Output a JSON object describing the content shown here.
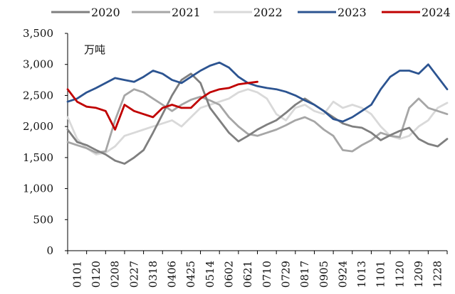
{
  "chart_data": {
    "type": "line",
    "unit": "万吨",
    "ylim": [
      0,
      3500
    ],
    "yticks": [
      "0",
      "500",
      "1,000",
      "1,500",
      "2,000",
      "2,500",
      "3,000",
      "3,500"
    ],
    "x_labels": [
      "0101",
      "0120",
      "0208",
      "0227",
      "0318",
      "0406",
      "0425",
      "0514",
      "0602",
      "0621",
      "0710",
      "0729",
      "0817",
      "0905",
      "0924",
      "1013",
      "1101",
      "1120",
      "1209",
      "1228"
    ],
    "legend_position": "top",
    "grid": false,
    "series": [
      {
        "name": "2020",
        "color": "#7f7f7f",
        "values": [
          1950,
          1750,
          1700,
          1620,
          1550,
          1450,
          1400,
          1500,
          1620,
          1900,
          2200,
          2500,
          2750,
          2850,
          2700,
          2300,
          2100,
          1900,
          1760,
          1850,
          1950,
          2030,
          2100,
          2220,
          2350,
          2450,
          2350,
          2250,
          2150,
          2050,
          2000,
          1980,
          1900,
          1780,
          1860,
          1930,
          1980,
          1800,
          1720,
          1680,
          1800
        ]
      },
      {
        "name": "2021",
        "color": "#a6a6a6",
        "values": [
          1750,
          1700,
          1650,
          1580,
          1600,
          2100,
          2500,
          2600,
          2550,
          2450,
          2350,
          2250,
          2350,
          2430,
          2480,
          2420,
          2350,
          2150,
          2000,
          1880,
          1850,
          1900,
          1950,
          2020,
          2100,
          2150,
          2080,
          1950,
          1850,
          1620,
          1600,
          1700,
          1780,
          1900,
          1850,
          1830,
          2300,
          2450,
          2300,
          2250,
          2200
        ]
      },
      {
        "name": "2022",
        "color": "#d9d9d9",
        "values": [
          2150,
          1800,
          1650,
          1550,
          1580,
          1680,
          1850,
          1900,
          1950,
          2000,
          2050,
          2100,
          2000,
          2150,
          2300,
          2350,
          2400,
          2450,
          2550,
          2600,
          2550,
          2450,
          2200,
          2100,
          2300,
          2350,
          2250,
          2200,
          2400,
          2300,
          2350,
          2300,
          2200,
          2000,
          1850,
          1800,
          1850,
          2000,
          2100,
          2300,
          2380
        ]
      },
      {
        "name": "2023",
        "color": "#2c5491",
        "values": [
          2400,
          2450,
          2550,
          2620,
          2700,
          2780,
          2750,
          2720,
          2800,
          2900,
          2850,
          2750,
          2700,
          2800,
          2900,
          2980,
          3030,
          2950,
          2800,
          2700,
          2650,
          2620,
          2600,
          2560,
          2500,
          2420,
          2350,
          2250,
          2120,
          2080,
          2150,
          2250,
          2350,
          2600,
          2800,
          2900,
          2900,
          2850,
          3000,
          2800,
          2600
        ]
      },
      {
        "name": "2024",
        "color": "#c00000",
        "values": [
          2600,
          2400,
          2320,
          2300,
          2250,
          1950,
          2350,
          2250,
          2200,
          2150,
          2300,
          2350,
          2300,
          2300,
          2450,
          2550,
          2600,
          2620,
          2680,
          2700,
          2720
        ]
      }
    ]
  }
}
